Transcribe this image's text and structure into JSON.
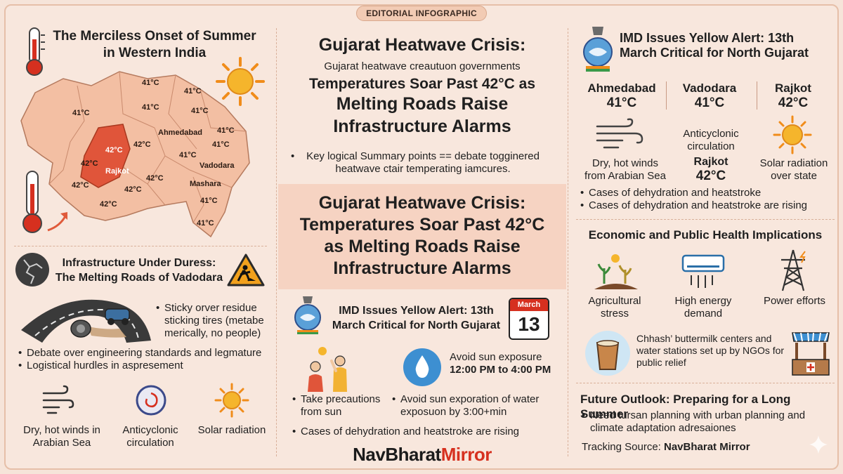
{
  "tag": "EDITORIAL INFOGRAPHIC",
  "left": {
    "title_line1": "The Merciless Onset of Summer",
    "title_line2": "in Western India",
    "map_labels": [
      {
        "t": "41°C",
        "name": "map-label-temp-1"
      },
      {
        "t": "41°C",
        "name": "map-label-temp-2"
      },
      {
        "t": "41°C",
        "name": "map-label-temp-3"
      },
      {
        "t": "41°C",
        "name": "map-label-temp-4"
      },
      {
        "t": "41°C",
        "name": "map-label-temp-5"
      },
      {
        "t": "41°C",
        "name": "map-label-temp-6"
      },
      {
        "t": "41°C",
        "name": "map-label-temp-7"
      },
      {
        "t": "Ahmedabad",
        "name": "map-label-ahmedabad"
      },
      {
        "t": "42°C",
        "name": "map-label-temp-8"
      },
      {
        "t": "42°C",
        "name": "map-label-temp-9"
      },
      {
        "t": "41°C",
        "name": "map-label-temp-10"
      },
      {
        "t": "Vadodara",
        "name": "map-label-vadodara"
      },
      {
        "t": "42°C",
        "name": "map-label-temp-11"
      },
      {
        "t": "Rajkot",
        "name": "map-label-rajkot"
      },
      {
        "t": "42°C",
        "name": "map-label-temp-12"
      },
      {
        "t": "42°C",
        "name": "map-label-temp-13"
      },
      {
        "t": "42°C",
        "name": "map-label-temp-14"
      },
      {
        "t": "Mashara",
        "name": "map-label-mashara"
      },
      {
        "t": "41°C",
        "name": "map-label-temp-15"
      },
      {
        "t": "42°C",
        "name": "map-label-temp-16"
      },
      {
        "t": "41°C",
        "name": "map-label-temp-17"
      }
    ],
    "infra_title1": "Infrastructure Under Duress:",
    "infra_title2": "The Melting Roads of Vadodara",
    "road_bullet": "Sticky orver residue sticking tires (metabe merically, no people)",
    "bullets": [
      "Debate over engineering standards and legmature",
      "Logistical hurdles in aspresement"
    ],
    "icons": [
      {
        "label": "Dry, hot winds in Arabian Sea"
      },
      {
        "label": "Anticyclonic circulation"
      },
      {
        "label": "Solar radiation"
      }
    ]
  },
  "center": {
    "h1": "Gujarat Heatwave Crisis:",
    "sub": "Gujarat heatwave creautuon governments",
    "h2a": "Temperatures Soar Past 42°C as",
    "h2b": "Melting Roads Raise",
    "h2c": "Infrastructure Alarms",
    "summary": "Key logical Summary points == debate togginered heatwave ctair temperating iamcures.",
    "band_l1": "Gujarat Heatwave Crisis:",
    "band_l2": "Temperatures Soar Past 42°C",
    "band_l3": "as Melting Roads Raise",
    "band_l4": "Infrastructure Alarms",
    "imd_l1": "IMD Issues Yellow Alert: 13th",
    "imd_l2": "March Critical for North Gujarat",
    "cal_month": "March",
    "cal_day": "13",
    "avoid_l1": "Avoid sun exposure",
    "avoid_l2": "12:00 PM to 4:00 PM",
    "prec": "Take precautions from sun",
    "avoid_bullet": "Avoid sun exporation of water exposuon by 3:00+min",
    "cases": "Cases of dehydration and heatstroke are rising",
    "brand_a": "NavBharat",
    "brand_b": "Mirror"
  },
  "right": {
    "imd_l1": "IMD Issues Yellow Alert: 13th",
    "imd_l2": "March Critical for North Gujarat",
    "cities": [
      {
        "name": "Ahmedabad",
        "temp": "41°C"
      },
      {
        "name": "Vadodara",
        "temp": "41°C"
      },
      {
        "name": "Rajkot",
        "temp": "42°C"
      }
    ],
    "winds": "Dry, hot winds from Arabian Sea",
    "anti": "Anticyclonic circulation",
    "rajkot_name": "Rajkot",
    "rajkot_temp": "42°C",
    "solar": "Solar radiation over state",
    "bullets": [
      "Cases of dehydration and heatstroke",
      "Cases of dehydration and heatstroke are rising"
    ],
    "econ_title": "Economic and Public Health Implications",
    "econ_items": [
      {
        "label": "Agricultural stress"
      },
      {
        "label": "High energy demand"
      },
      {
        "label": "Power efforts"
      }
    ],
    "chhash": "Chhash’ buttermilk centers and water stations set up by NGOs for public relief",
    "future_title": "Future Outlook: Preparing for a Long Summer",
    "future_bullet": "Need tursan planning with urban planning and climate adaptation adresaiones",
    "tracking_label": "Tracking Source:",
    "tracking_value": "NavBharat Mirror"
  },
  "colors": {
    "bg": "#f8e7dd",
    "map_fill": "#f3bfa3",
    "map_hot": "#e0553a",
    "accent_red": "#d6301f",
    "sun": "#f5a524"
  }
}
